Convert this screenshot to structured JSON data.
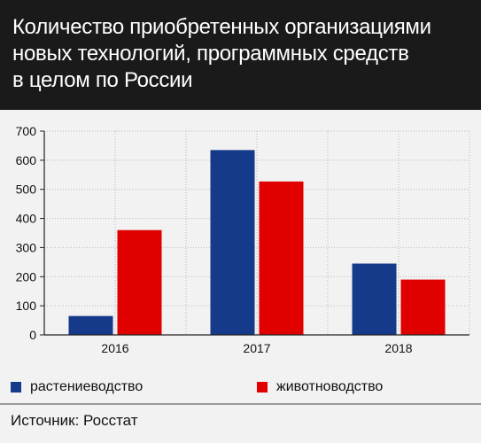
{
  "header": {
    "title_lines": [
      "Количество приобретенных организациями",
      "новых технологий, программных средств",
      "в целом по России"
    ]
  },
  "chart_data": {
    "type": "bar",
    "title": "Количество приобретенных организациями новых технологий, программных средств в целом по России",
    "categories": [
      "2016",
      "2017",
      "2018"
    ],
    "series": [
      {
        "name": "растениеводство",
        "values": [
          65,
          635,
          245
        ],
        "color": "#163a8a"
      },
      {
        "name": "животноводство",
        "values": [
          360,
          527,
          190
        ],
        "color": "#e00000"
      }
    ],
    "y_ticks": [
      0,
      100,
      200,
      300,
      400,
      500,
      600,
      700
    ],
    "ylim": [
      0,
      700
    ],
    "grid": true,
    "legend_position": "bottom"
  },
  "footer": {
    "source": "Источник: Росстат"
  }
}
